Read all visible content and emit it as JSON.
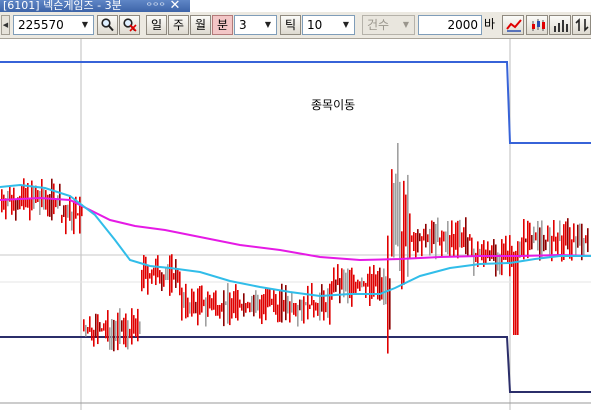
{
  "window": {
    "tab_title": "[6101] 넥슨게임즈 - 3분",
    "tab_extra": "ᄋᄋᄋ"
  },
  "toolbar": {
    "code_value": "225570",
    "period_labels": [
      "일",
      "주",
      "월",
      "분"
    ],
    "active_period": "분",
    "minutes_value": "3",
    "tick_label": "틱",
    "tick_value": "10",
    "count_label": "건수",
    "count_value": "2000",
    "bar_unit_label": "바"
  },
  "colors": {
    "up_bar": "#e00000",
    "flat_bar": "#a0a0a0",
    "ma_short": "#31bde9",
    "ma_long": "#e51ae5",
    "upper_band": "#3763d8",
    "lower_band": "#2b2e6a"
  },
  "chart": {
    "annotation": "종목이동"
  }
}
